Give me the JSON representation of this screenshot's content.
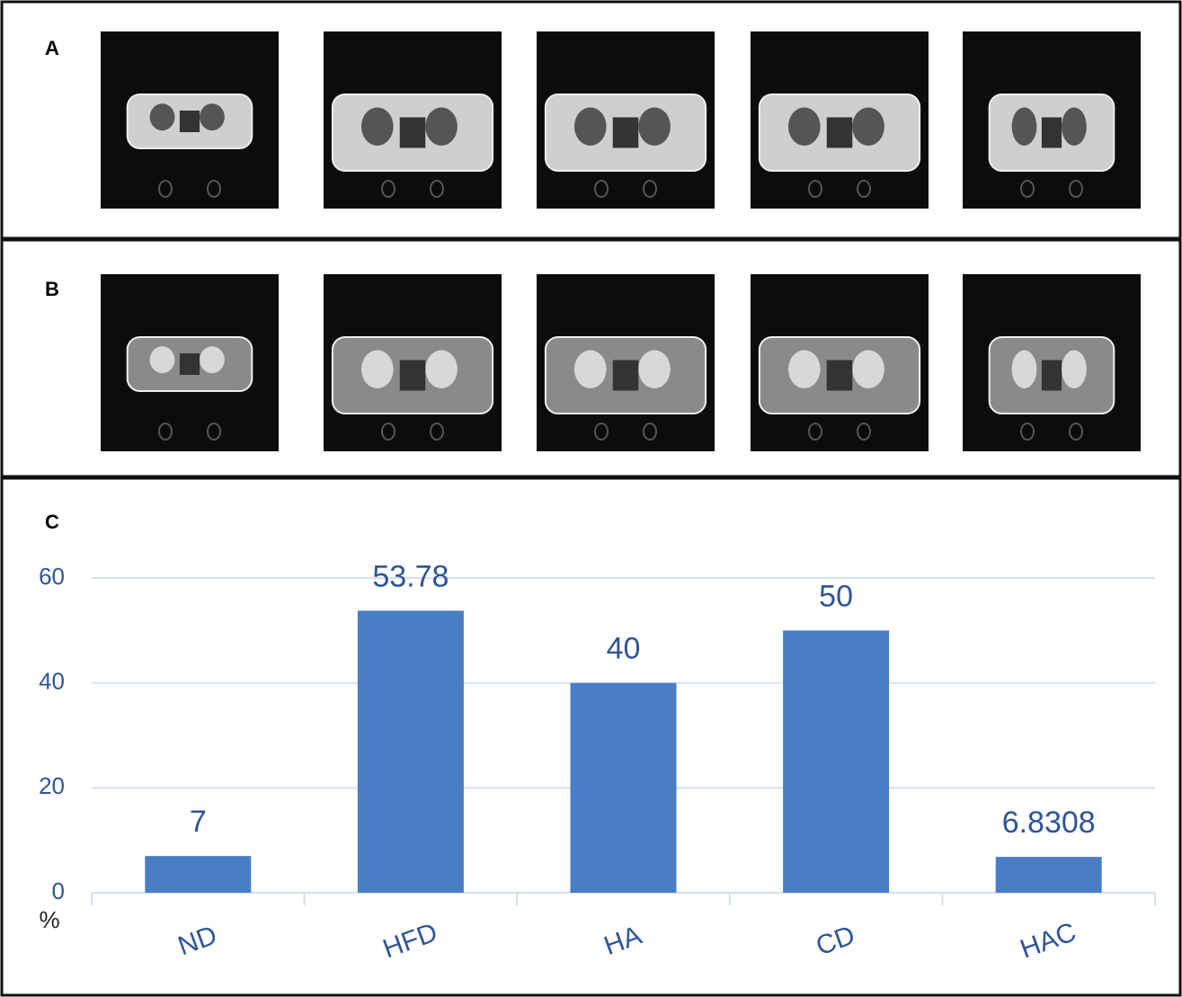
{
  "panel_labels": [
    "A",
    "B",
    "C"
  ],
  "chart_data": {
    "type": "bar",
    "y_label": "%",
    "categories": [
      "ND",
      "HFD",
      "HA",
      "CD",
      "HAC"
    ],
    "values": [
      7,
      53.78,
      40,
      50,
      6.8308
    ],
    "color": "#4a7ec4",
    "ylim": [
      0,
      60
    ],
    "yticks": [
      0,
      20,
      40,
      60
    ],
    "grid": true
  }
}
